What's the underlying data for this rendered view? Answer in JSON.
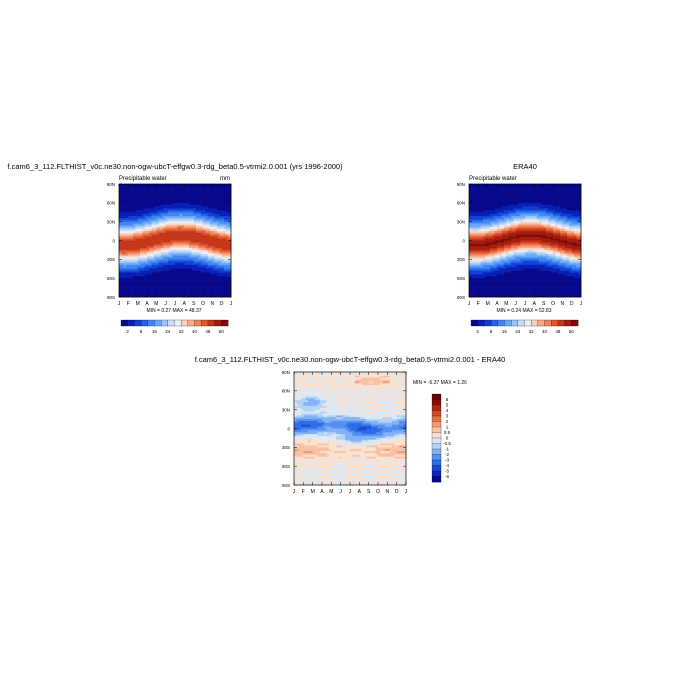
{
  "chart_data": [
    {
      "type": "heatmap",
      "title": "f.cam6_3_112.FLTHIST_v0c.ne30.non-ogw-ubcT-effgw0.3-rdg_beta0.5-vtrmi2.0.001 (yrs 1996-2000)",
      "subtitle": "Precipitable water",
      "units": "mm",
      "x": [
        "J",
        "F",
        "M",
        "A",
        "M",
        "J",
        "J",
        "A",
        "S",
        "O",
        "N",
        "D",
        "J"
      ],
      "y_ticks": [
        "90N",
        "60N",
        "30N",
        "0",
        "30S",
        "60S",
        "90S"
      ],
      "ylim": [
        -90,
        90
      ],
      "min_max_text": "MIN =   0.27 MAX =  48.37",
      "min": 0.27,
      "max": 48.37,
      "field": "climo",
      "colorbar": {
        "orientation": "horizontal",
        "levels": [
          2,
          4,
          6,
          8,
          12,
          16,
          20,
          24,
          28,
          32,
          36,
          40,
          44,
          48,
          52
        ],
        "tick_labels": [
          "2",
          "8",
          "16",
          "24",
          "32",
          "40",
          "48",
          "50"
        ],
        "colors": [
          "#08088c",
          "#0a1fb4",
          "#1140d6",
          "#2364e8",
          "#3f87f0",
          "#6aa8f5",
          "#9cc6f8",
          "#c9ddf8",
          "#eef0f4",
          "#fbd3bf",
          "#f6ac8a",
          "#ef8259",
          "#e0582f",
          "#c6361a",
          "#a31d10",
          "#7a0c0a"
        ]
      }
    },
    {
      "type": "heatmap",
      "title": "ERA40",
      "subtitle": "Precipitable water",
      "x": [
        "J",
        "F",
        "M",
        "A",
        "M",
        "J",
        "J",
        "A",
        "S",
        "O",
        "N",
        "D",
        "J"
      ],
      "y_ticks": [
        "90N",
        "60N",
        "30N",
        "0",
        "30S",
        "60S",
        "90S"
      ],
      "ylim": [
        -90,
        90
      ],
      "min_max_text": "MIN =   0.24 MAX =  52.83",
      "min": 0.24,
      "max": 52.83,
      "field": "climo",
      "colorbar": {
        "orientation": "horizontal",
        "levels": [
          2,
          4,
          6,
          8,
          12,
          16,
          20,
          24,
          28,
          32,
          36,
          40,
          44,
          48,
          52
        ],
        "tick_labels": [
          "2",
          "8",
          "16",
          "24",
          "32",
          "40",
          "48",
          "50"
        ],
        "colors": [
          "#08088c",
          "#0a1fb4",
          "#1140d6",
          "#2364e8",
          "#3f87f0",
          "#6aa8f5",
          "#9cc6f8",
          "#c9ddf8",
          "#eef0f4",
          "#fbd3bf",
          "#f6ac8a",
          "#ef8259",
          "#e0582f",
          "#c6361a",
          "#a31d10",
          "#7a0c0a"
        ]
      }
    },
    {
      "type": "heatmap",
      "title": "f.cam6_3_112.FLTHIST_v0c.ne30.non-ogw-ubcT-effgw0.3-rdg_beta0.5-vtrmi2.0.001 - ERA40",
      "x": [
        "J",
        "F",
        "M",
        "A",
        "M",
        "J",
        "J",
        "A",
        "S",
        "O",
        "N",
        "D",
        "J"
      ],
      "y_ticks": [
        "90N",
        "60N",
        "30N",
        "0",
        "30S",
        "60S",
        "90S"
      ],
      "ylim": [
        -90,
        90
      ],
      "min_max_text": "MIN =  -5.37 MAX =   1.26",
      "min": -5.37,
      "max": 1.26,
      "field": "diff",
      "colorbar": {
        "orientation": "vertical",
        "levels": [
          -6,
          -5,
          -4,
          -3,
          -2,
          -1,
          -0.5,
          0,
          0.5,
          1,
          2,
          3,
          4,
          5,
          6
        ],
        "tick_labels": [
          "6",
          "5",
          "4",
          "3",
          "2",
          "1",
          "0.5",
          "0",
          "-0.5",
          "-1",
          "-2",
          "-3",
          "-4",
          "-5",
          "-6"
        ],
        "colors": [
          "#08088c",
          "#0c24b8",
          "#1848d8",
          "#2e6ce8",
          "#5590f0",
          "#82b2f5",
          "#b4d2f8",
          "#dde8f6",
          "#fbe1cf",
          "#f8c2a4",
          "#f29c74",
          "#e8724a",
          "#d24a28",
          "#b02816",
          "#860e0a",
          "#600404"
        ]
      }
    }
  ]
}
